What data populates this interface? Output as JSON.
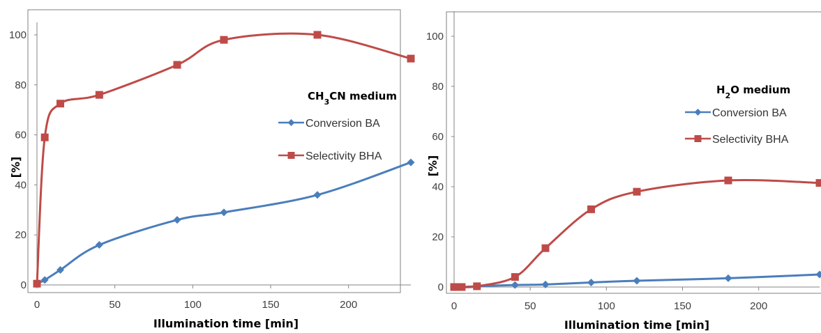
{
  "colors": {
    "conversion": "#4a7ebb",
    "selectivity": "#be4b48",
    "axis": "#868686",
    "frame": "#808080"
  },
  "chart_data": [
    {
      "type": "line",
      "panel": "left",
      "medium_label": {
        "main": "CH",
        "sub1": "3",
        "mid": "CN",
        "rest": " medium"
      },
      "xlabel": "Illumination time [min]",
      "ylabel": "[%]",
      "xlim": [
        0,
        240
      ],
      "ylim": [
        0,
        105
      ],
      "xticks": [
        0,
        50,
        100,
        150,
        200
      ],
      "yticks": [
        0,
        20,
        40,
        60,
        80,
        100
      ],
      "grid": false,
      "legend_position": "right-center",
      "series": [
        {
          "name": "Conversion BA",
          "marker": "diamond",
          "color": "#4a7ebb",
          "x": [
            0,
            5,
            15,
            40,
            90,
            120,
            180,
            240
          ],
          "y": [
            0.5,
            2,
            6,
            16,
            26,
            29,
            36,
            49
          ]
        },
        {
          "name": "Selectivity BHA",
          "marker": "square",
          "color": "#be4b48",
          "x": [
            0,
            5,
            15,
            40,
            90,
            120,
            180,
            240
          ],
          "y": [
            0.5,
            59,
            72.5,
            76,
            88,
            98,
            100,
            90.5
          ]
        }
      ]
    },
    {
      "type": "line",
      "panel": "right",
      "medium_label": {
        "main": "H",
        "sub1": "2",
        "mid": "O",
        "rest": " medium"
      },
      "xlabel": "Illumination time [min]",
      "ylabel": "[%]",
      "xlim": [
        0,
        240
      ],
      "ylim": [
        0,
        110
      ],
      "xticks": [
        0,
        50,
        100,
        150,
        200
      ],
      "yticks": [
        0,
        20,
        40,
        60,
        80,
        100
      ],
      "grid": false,
      "legend_position": "right-center",
      "series": [
        {
          "name": "Conversion BA",
          "marker": "diamond",
          "color": "#4a7ebb",
          "x": [
            0,
            5,
            15,
            40,
            60,
            90,
            120,
            180,
            240
          ],
          "y": [
            0,
            0,
            0.3,
            0.8,
            1,
            1.8,
            2.5,
            3.5,
            5
          ]
        },
        {
          "name": "Selectivity BHA",
          "marker": "square",
          "color": "#be4b48",
          "x": [
            0,
            5,
            15,
            40,
            60,
            90,
            120,
            180,
            240
          ],
          "y": [
            0,
            0,
            0.3,
            4,
            15.5,
            31,
            38,
            42.5,
            41.5
          ]
        }
      ]
    }
  ]
}
